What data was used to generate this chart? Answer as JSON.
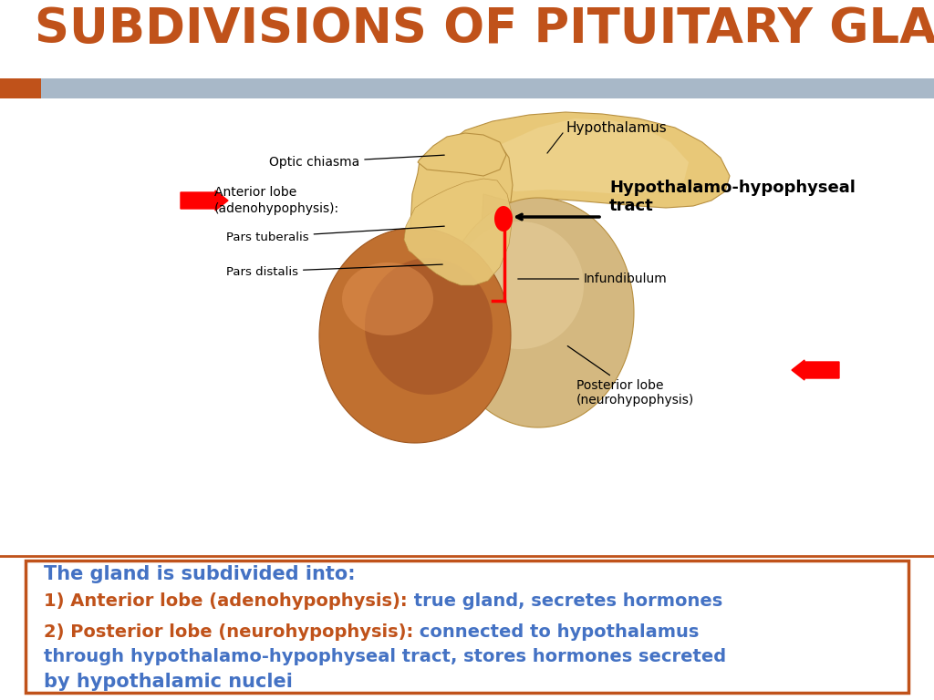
{
  "title": "SUBDIVISIONS OF PITUITARY GLAND",
  "title_color": "#C0521A",
  "title_fontsize": 38,
  "bg_color": "#FFFFFF",
  "bar_color": "#A8B8C8",
  "bar_orange_color": "#C0521A",
  "text_box_edge_color": "#C0521A",
  "text_intro": "The gland is subdivided into:",
  "text_intro_color": "#4472C4",
  "line1_bold": "1) Anterior lobe (adenohypophysis):",
  "line1_bold_color": "#C0521A",
  "line1_rest": " true gland, secretes hormones",
  "line1_rest_color": "#4472C4",
  "line2_bold": "2) Posterior lobe (neurohypophysis):",
  "line2_bold_color": "#C0521A",
  "line2_rest": " connected to hypothalamus",
  "line2_rest_color": "#4472C4",
  "line3_text": "through ",
  "line3_bold": "hypothalamo-hypophyseal tract",
  "line3_rest": ", stores hormones secreted",
  "line3_color": "#4472C4",
  "line4_text": "by hypothalamic nuclei",
  "line4_color": "#4472C4",
  "tan_light": "#E8C878",
  "tan_mid": "#D4AA60",
  "tan_dark": "#B89040",
  "post_lobe_color": "#D4B880",
  "ant_lobe_color": "#C07030",
  "ant_lobe_dark": "#A05820",
  "label_fontsize": 10,
  "hypo_label_fontsize": 11,
  "hypo_tract_fontsize": 13
}
